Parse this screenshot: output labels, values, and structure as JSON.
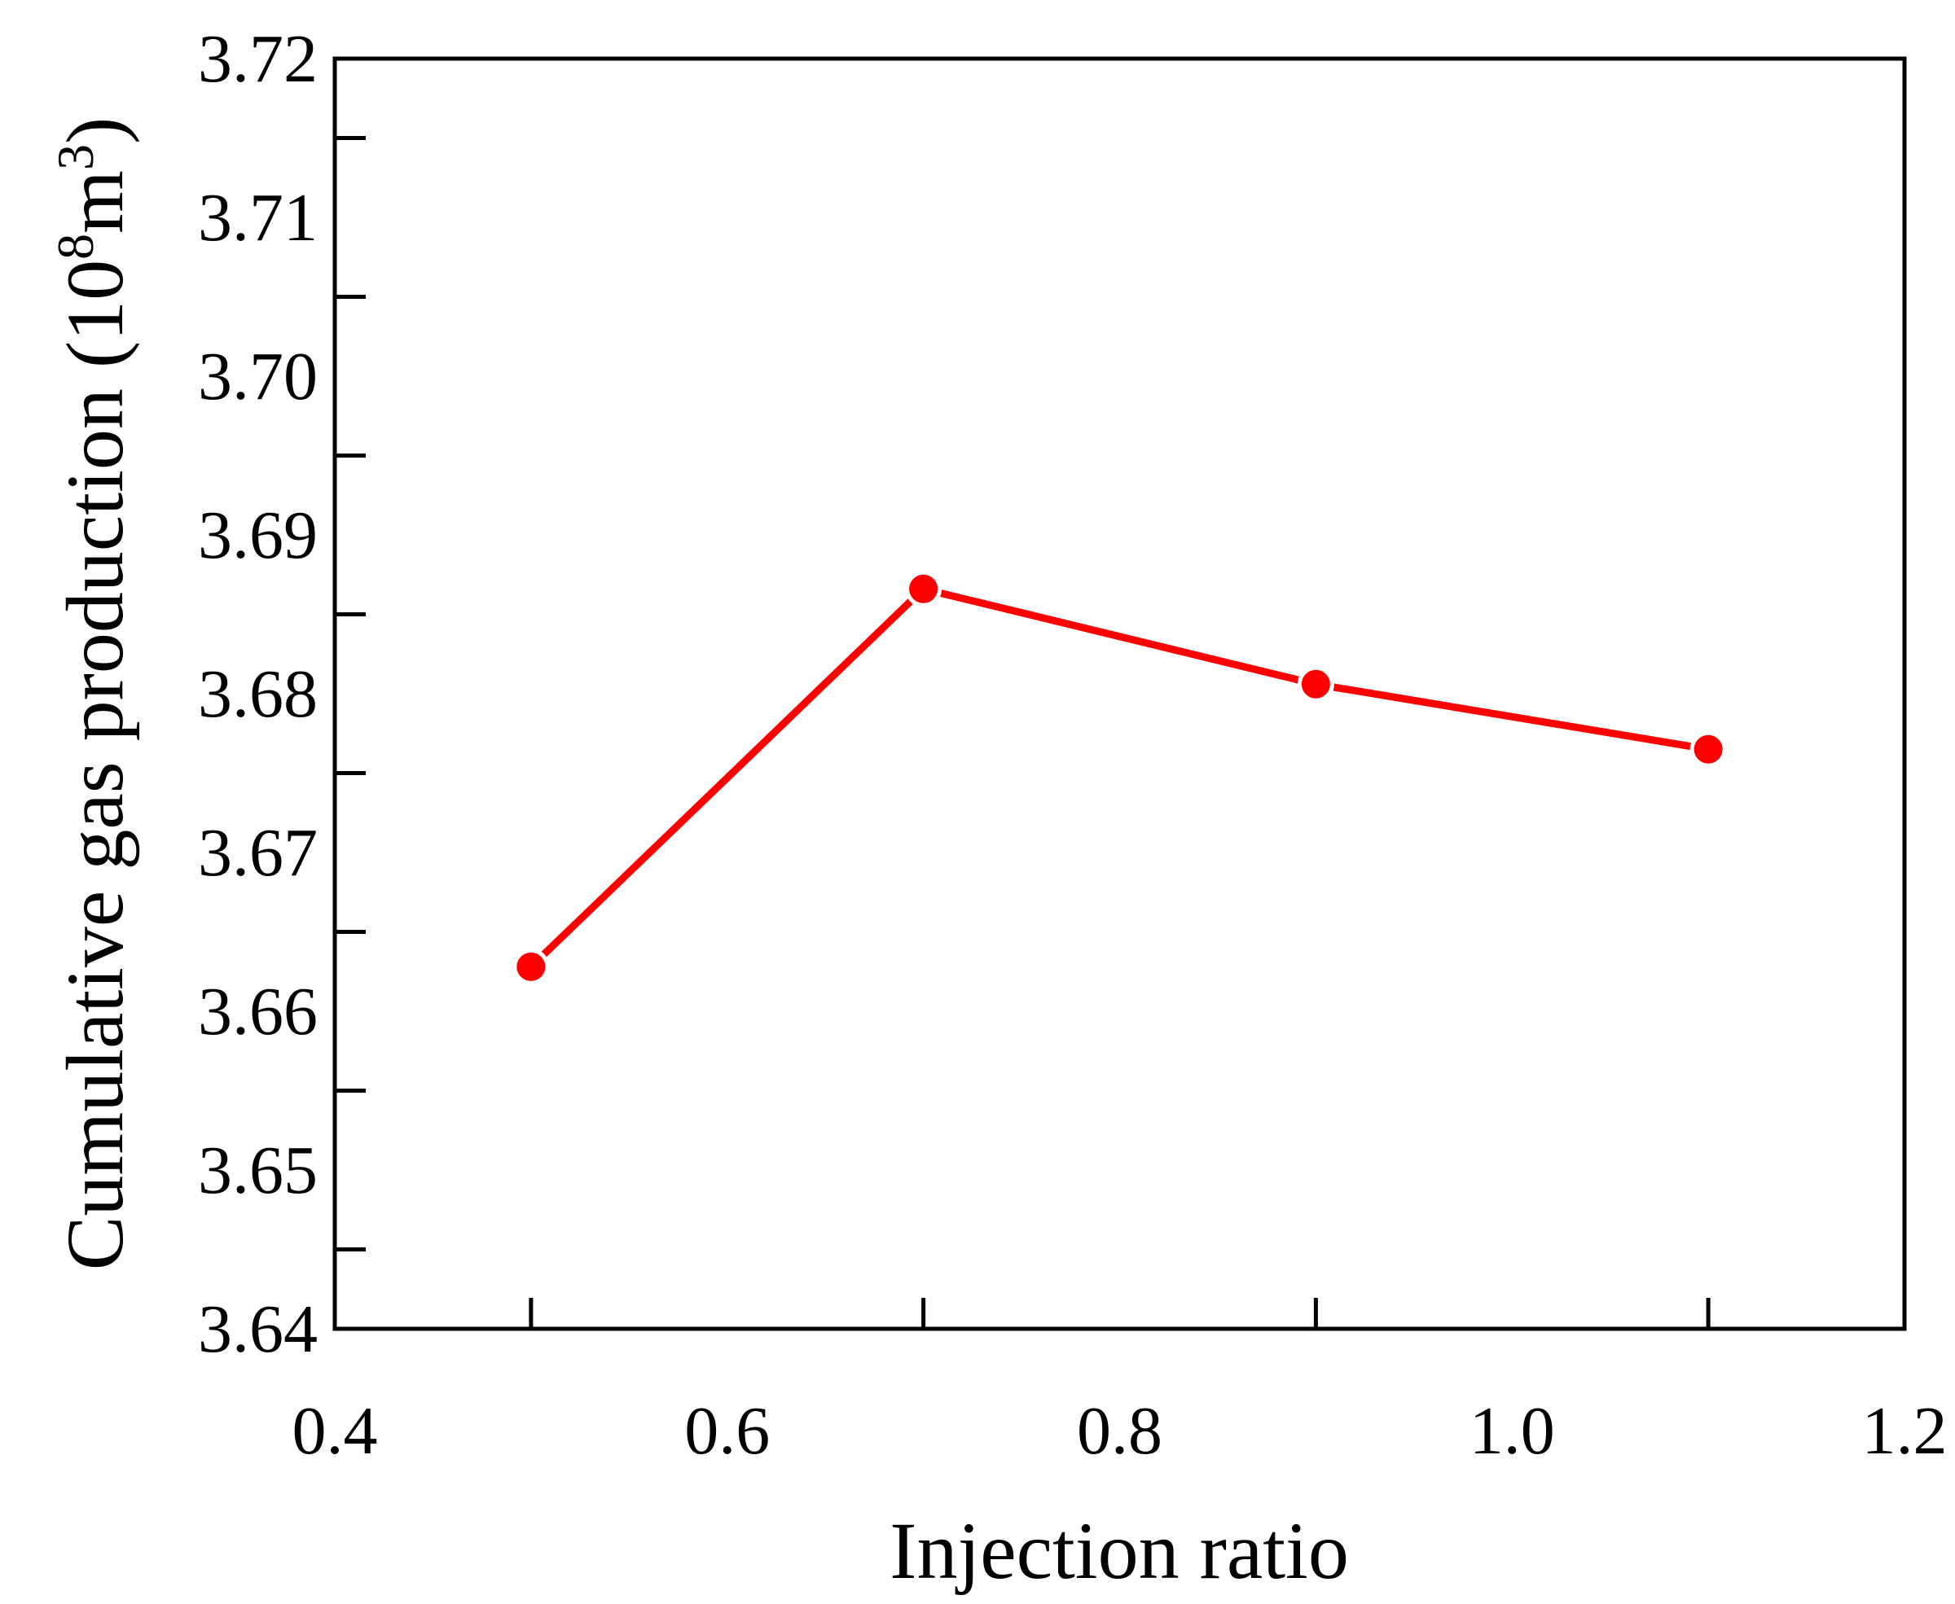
{
  "chart_data": {
    "type": "line",
    "title": "",
    "xlabel": "Injection ratio",
    "ylabel_main": "Cumulative gas production (10",
    "ylabel_sup1": "8",
    "ylabel_mid": "m",
    "ylabel_sup2": "3",
    "ylabel_end": ")",
    "xlim": [
      0.4,
      1.2
    ],
    "ylim": [
      3.64,
      3.72
    ],
    "x_ticks": [
      0.4,
      0.6,
      0.8,
      1.0,
      1.2
    ],
    "x_tick_labels": [
      "0.4",
      "0.6",
      "0.8",
      "1.0",
      "1.2"
    ],
    "x_minor_ticks": [
      0.5,
      0.7,
      0.9,
      1.1
    ],
    "y_ticks": [
      3.64,
      3.65,
      3.66,
      3.67,
      3.68,
      3.69,
      3.7,
      3.71,
      3.72
    ],
    "y_tick_labels": [
      "3.64",
      "3.65",
      "3.66",
      "3.67",
      "3.68",
      "3.69",
      "3.70",
      "3.71",
      "3.72"
    ],
    "y_minor_ticks": [
      3.645,
      3.655,
      3.665,
      3.675,
      3.685,
      3.695,
      3.705,
      3.715
    ],
    "grid": false,
    "series": [
      {
        "name": "Cumulative gas production",
        "color": "#ff0000",
        "x": [
          0.5,
          0.7,
          0.9,
          1.1
        ],
        "y": [
          3.6628,
          3.6866,
          3.6806,
          3.6765
        ]
      }
    ]
  }
}
